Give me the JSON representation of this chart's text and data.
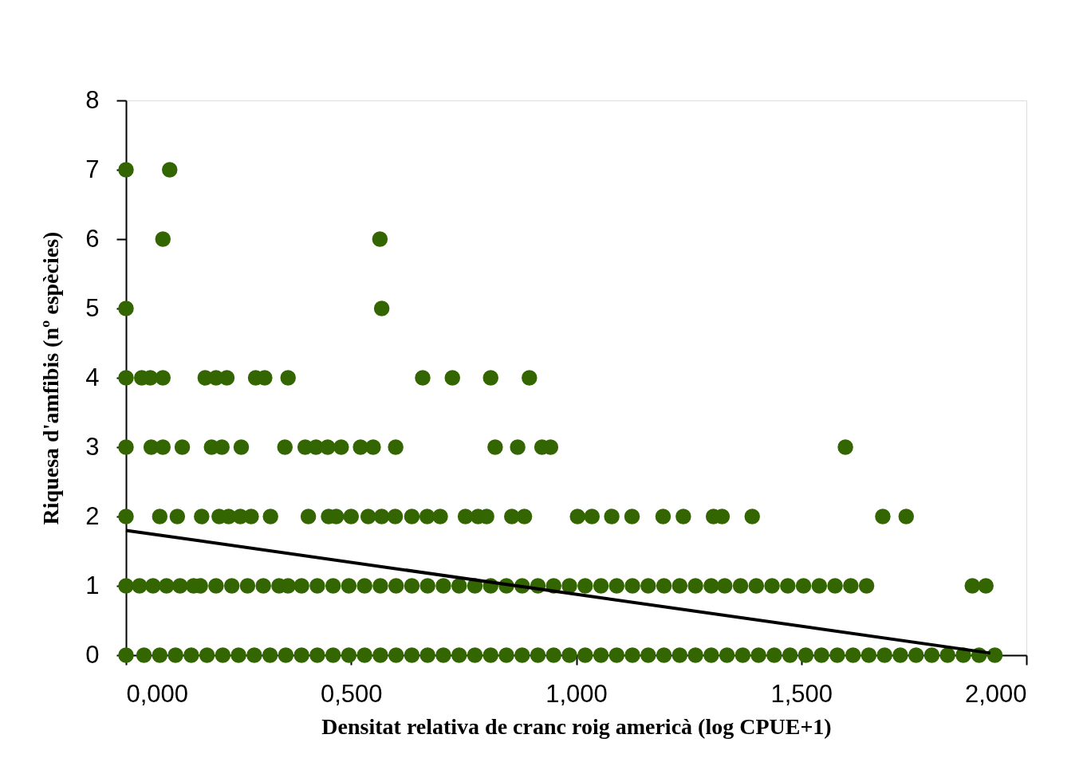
{
  "chart_data": {
    "type": "scatter",
    "xlabel": "Densitat relativa de cranc roig americà (log CPUE+1)",
    "ylabel": "Riquesa d'amfibis (nº espècies)",
    "xlim": [
      0,
      2
    ],
    "ylim": [
      0,
      8
    ],
    "xticks": [
      {
        "value": 0,
        "label": "0,000"
      },
      {
        "value": 0.5,
        "label": "0,500"
      },
      {
        "value": 1,
        "label": "1,000"
      },
      {
        "value": 1.5,
        "label": "1,500"
      },
      {
        "value": 2,
        "label": "2,000"
      }
    ],
    "yticks": [
      0,
      1,
      2,
      3,
      4,
      5,
      6,
      7,
      8
    ],
    "grid": false,
    "marker": "circle",
    "series": [
      {
        "color": "#336600",
        "x": [
          0,
          0.04,
          0.075,
          0.11,
          0.145,
          0.18,
          0.215,
          0.25,
          0.285,
          0.32,
          0.355,
          0.39,
          0.425,
          0.46,
          0.495,
          0.53,
          0.565,
          0.6,
          0.635,
          0.67,
          0.705,
          0.74,
          0.775,
          0.81,
          0.845,
          0.88,
          0.915,
          0.95,
          0.985,
          1.02,
          1.055,
          1.09,
          1.125,
          1.16,
          1.195,
          1.23,
          1.265,
          1.3,
          1.335,
          1.37,
          1.405,
          1.44,
          1.475,
          1.51,
          1.545,
          1.58,
          1.615,
          1.65,
          1.685,
          1.72,
          1.755,
          1.79,
          1.825,
          1.86,
          1.895,
          1.93,
          0,
          0.03,
          0.06,
          0.09,
          0.12,
          0.15,
          0.165,
          0.2,
          0.235,
          0.27,
          0.305,
          0.34,
          0.36,
          0.39,
          0.425,
          0.46,
          0.495,
          0.53,
          0.565,
          0.6,
          0.635,
          0.67,
          0.705,
          0.74,
          0.775,
          0.81,
          0.845,
          0.88,
          0.915,
          0.95,
          0.985,
          1.02,
          1.055,
          1.09,
          1.125,
          1.16,
          1.195,
          1.23,
          1.265,
          1.3,
          1.33,
          1.365,
          1.4,
          1.435,
          1.47,
          1.505,
          1.54,
          1.575,
          1.61,
          1.645,
          1.88,
          1.91,
          0,
          0.075,
          0.114,
          0.168,
          0.207,
          0.228,
          0.254,
          0.278,
          0.321,
          0.405,
          0.45,
          0.467,
          0.5,
          0.538,
          0.568,
          0.598,
          0.635,
          0.669,
          0.698,
          0.754,
          0.782,
          0.801,
          0.857,
          0.885,
          1.003,
          1.035,
          1.079,
          1.124,
          1.193,
          1.238,
          1.305,
          1.324,
          1.391,
          1.681,
          1.733,
          0,
          0.056,
          0.082,
          0.125,
          0.19,
          0.213,
          0.256,
          0.353,
          0.398,
          0.422,
          0.448,
          0.478,
          0.521,
          0.549,
          0.599,
          0.82,
          0.87,
          0.924,
          0.943,
          1.598,
          0,
          0.035,
          0.054,
          0.082,
          0.176,
          0.2,
          0.224,
          0.288,
          0.308,
          0.36,
          0.659,
          0.725,
          0.81,
          0.896,
          0,
          0.568,
          0.082,
          0.564,
          0,
          0.097
        ],
        "values": [
          0,
          0,
          0,
          0,
          0,
          0,
          0,
          0,
          0,
          0,
          0,
          0,
          0,
          0,
          0,
          0,
          0,
          0,
          0,
          0,
          0,
          0,
          0,
          0,
          0,
          0,
          0,
          0,
          0,
          0,
          0,
          0,
          0,
          0,
          0,
          0,
          0,
          0,
          0,
          0,
          0,
          0,
          0,
          0,
          0,
          0,
          0,
          0,
          0,
          0,
          0,
          0,
          0,
          0,
          0,
          0,
          1,
          1,
          1,
          1,
          1,
          1,
          1,
          1,
          1,
          1,
          1,
          1,
          1,
          1,
          1,
          1,
          1,
          1,
          1,
          1,
          1,
          1,
          1,
          1,
          1,
          1,
          1,
          1,
          1,
          1,
          1,
          1,
          1,
          1,
          1,
          1,
          1,
          1,
          1,
          1,
          1,
          1,
          1,
          1,
          1,
          1,
          1,
          1,
          1,
          1,
          1,
          1,
          2,
          2,
          2,
          2,
          2,
          2,
          2,
          2,
          2,
          2,
          2,
          2,
          2,
          2,
          2,
          2,
          2,
          2,
          2,
          2,
          2,
          2,
          2,
          2,
          2,
          2,
          2,
          2,
          2,
          2,
          2,
          2,
          2,
          2,
          2,
          3,
          3,
          3,
          3,
          3,
          3,
          3,
          3,
          3,
          3,
          3,
          3,
          3,
          3,
          3,
          3,
          3,
          3,
          3,
          3,
          4,
          4,
          4,
          4,
          4,
          4,
          4,
          4,
          4,
          4,
          4,
          4,
          4,
          4,
          5,
          5,
          6,
          6,
          7,
          7
        ]
      },
      {
        "type": "line",
        "marker": "none",
        "color": "#000000",
        "x": [
          0,
          1.92
        ],
        "values": [
          1.8,
          0.03
        ]
      }
    ]
  }
}
